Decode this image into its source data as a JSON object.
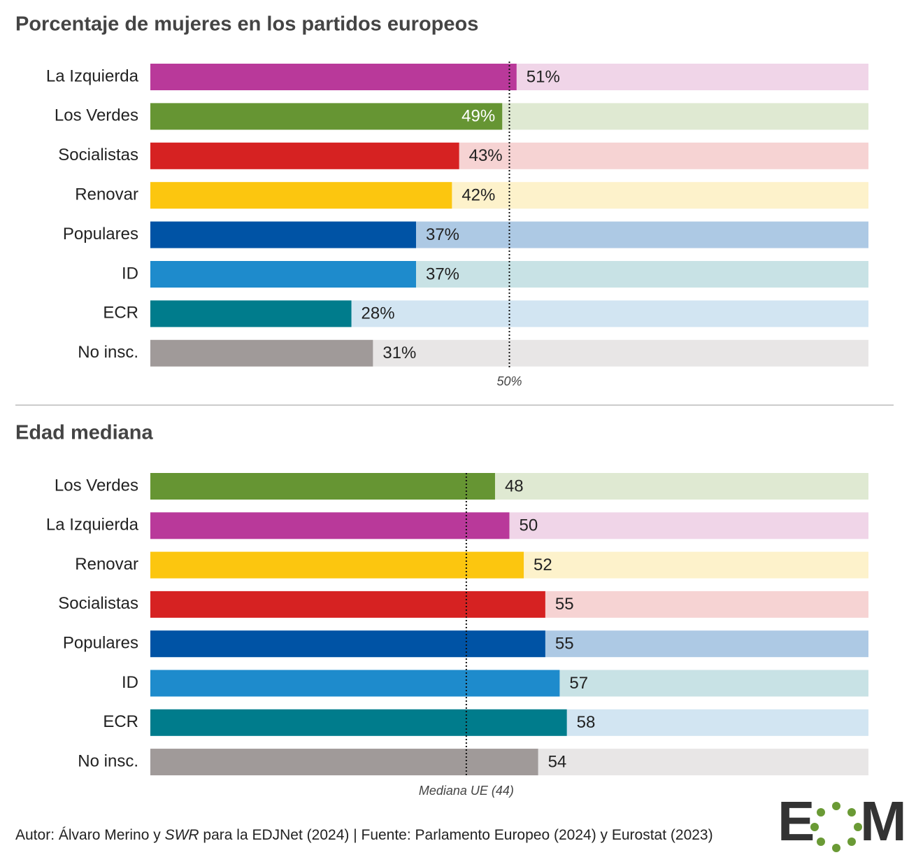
{
  "chart_data": [
    {
      "type": "bar",
      "orientation": "horizontal",
      "title": "Porcentaje de mujeres en los partidos europeos",
      "categories": [
        "La Izquierda",
        "Los Verdes",
        "Socialistas",
        "Renovar",
        "Populares",
        "ID",
        "ECR",
        "No insc."
      ],
      "values": [
        51,
        49,
        43,
        42,
        37,
        37,
        28,
        31
      ],
      "value_labels": [
        "51%",
        "49%",
        "43%",
        "42%",
        "37%",
        "37%",
        "28%",
        "31%"
      ],
      "colors": [
        "#b9399a",
        "#669533",
        "#d62222",
        "#fcc60f",
        "#0053a5",
        "#1e8bcc",
        "#007c8c",
        "#a09a99"
      ],
      "track_colors": [
        "#f0d5e8",
        "#dfe9d2",
        "#f6d3d3",
        "#fdf2cb",
        "#adc9e4",
        "#c8e2e5",
        "#d2e5f2",
        "#e8e6e6"
      ],
      "xlim": [
        0,
        100
      ],
      "reference_line": {
        "value": 50,
        "label": "50%"
      }
    },
    {
      "type": "bar",
      "orientation": "horizontal",
      "title": "Edad mediana",
      "categories": [
        "Los Verdes",
        "La Izquierda",
        "Renovar",
        "Socialistas",
        "Populares",
        "ID",
        "ECR",
        "No insc."
      ],
      "values": [
        48,
        50,
        52,
        55,
        55,
        57,
        58,
        54
      ],
      "colors": [
        "#669533",
        "#b9399a",
        "#fcc60f",
        "#d62222",
        "#0053a5",
        "#1e8bcc",
        "#007c8c",
        "#a09a99"
      ],
      "track_colors": [
        "#dfe9d2",
        "#f0d5e8",
        "#fdf2cb",
        "#f6d3d3",
        "#adc9e4",
        "#c8e2e5",
        "#d2e5f2",
        "#e8e6e6"
      ],
      "xlim": [
        0,
        100
      ],
      "reference_line": {
        "value": 44,
        "label": "Mediana UE (44)"
      }
    }
  ],
  "footer": [
    "Autor: Álvaro Merino y ",
    "SWR",
    " para la EDJNet (2024) | Fuente: Parlamento Europeo (2024) y Eurostat (2023)"
  ],
  "logo": {
    "left": "E",
    "right": "M"
  }
}
